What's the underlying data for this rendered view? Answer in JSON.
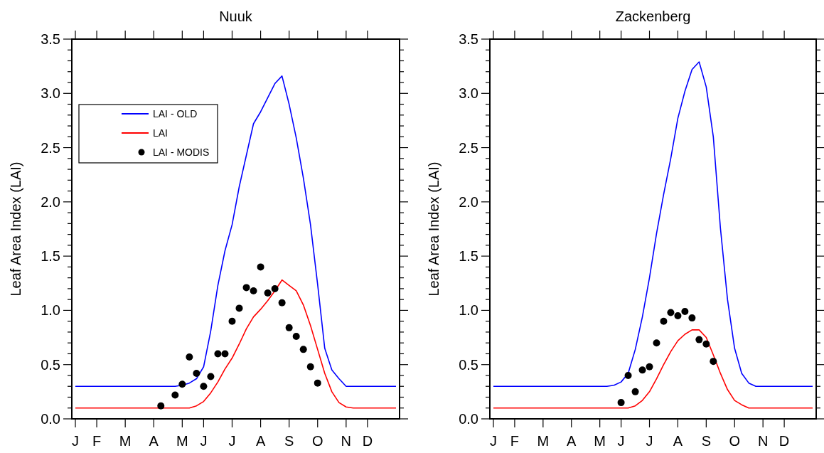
{
  "chart_data": [
    {
      "type": "line",
      "title": "Nuuk",
      "ylabel": "Leaf Area Index (LAI)",
      "categories": [
        "J",
        null,
        null,
        "F",
        null,
        null,
        null,
        "M",
        null,
        null,
        null,
        "A",
        null,
        null,
        null,
        "M",
        null,
        null,
        "J",
        null,
        null,
        null,
        "J",
        null,
        null,
        null,
        "A",
        null,
        null,
        null,
        "S",
        null,
        null,
        null,
        "O",
        null,
        null,
        null,
        "N",
        null,
        null,
        "D",
        null,
        null,
        null,
        null
      ],
      "ylim": [
        0,
        3.5
      ],
      "yticks": [
        {
          "value": 0,
          "label": "0.0"
        },
        {
          "value": 0.1,
          "label": null
        },
        {
          "value": 0.2,
          "label": null
        },
        {
          "value": 0.3,
          "label": null
        },
        {
          "value": 0.4,
          "label": null
        },
        0.5,
        {
          "value": 0.6,
          "label": null
        },
        {
          "value": 0.7,
          "label": null
        },
        {
          "value": 0.8,
          "label": null
        },
        {
          "value": 0.9,
          "label": null
        },
        {
          "value": 1,
          "label": "1.0"
        },
        {
          "value": 1.1,
          "label": null
        },
        {
          "value": 1.2,
          "label": null
        },
        {
          "value": 1.3,
          "label": null
        },
        {
          "value": 1.4,
          "label": null
        },
        1.5,
        {
          "value": 1.6,
          "label": null
        },
        {
          "value": 1.7,
          "label": null
        },
        {
          "value": 1.8,
          "label": null
        },
        {
          "value": 1.9,
          "label": null
        },
        {
          "value": 2,
          "label": "2.0"
        },
        {
          "value": 2.1,
          "label": null
        },
        {
          "value": 2.2,
          "label": null
        },
        {
          "value": 2.3,
          "label": null
        },
        {
          "value": 2.4,
          "label": null
        },
        2.5,
        {
          "value": 2.6,
          "label": null
        },
        {
          "value": 2.7,
          "label": null
        },
        {
          "value": 2.8,
          "label": null
        },
        {
          "value": 2.9,
          "label": null
        },
        {
          "value": 3,
          "label": "3.0"
        },
        {
          "value": 3.1,
          "label": null
        },
        {
          "value": 3.2,
          "label": null
        },
        {
          "value": 3.3,
          "label": null
        },
        {
          "value": 3.4,
          "label": null
        },
        3.5
      ],
      "legend": "top left",
      "grid": false,
      "series": [
        {
          "name": "LAI - OLD",
          "color": "#0000ff",
          "values": [
            0.3,
            0.3,
            0.3,
            0.3,
            0.3,
            0.3,
            0.3,
            0.3,
            0.3,
            0.3,
            0.3,
            0.3,
            0.3,
            0.3,
            0.3,
            0.31,
            0.33,
            0.37,
            0.48,
            0.81,
            1.23,
            1.55,
            1.79,
            2.14,
            2.43,
            2.72,
            2.83,
            2.96,
            3.09,
            3.16,
            2.9,
            2.59,
            2.22,
            1.79,
            1.24,
            0.65,
            0.45,
            0.37,
            0.3,
            0.3,
            0.3,
            0.3,
            0.3,
            0.3,
            0.3,
            0.3
          ]
        },
        {
          "name": "LAI",
          "color": "#ff0000",
          "values": [
            0.1,
            0.1,
            0.1,
            0.1,
            0.1,
            0.1,
            0.1,
            0.1,
            0.1,
            0.1,
            0.1,
            0.1,
            0.1,
            0.1,
            0.1,
            0.1,
            0.1,
            0.12,
            0.16,
            0.24,
            0.34,
            0.46,
            0.56,
            0.69,
            0.83,
            0.94,
            1.01,
            1.09,
            1.18,
            1.28,
            1.23,
            1.18,
            1.05,
            0.86,
            0.64,
            0.42,
            0.25,
            0.15,
            0.11,
            0.1,
            0.1,
            0.1,
            0.1,
            0.1,
            0.1,
            0.1
          ]
        },
        {
          "name": "LAI - MODIS",
          "type": "scatter",
          "marker": "circle",
          "color": "#000000",
          "values": [
            null,
            null,
            null,
            null,
            null,
            null,
            null,
            null,
            null,
            null,
            null,
            null,
            0.12,
            null,
            0.22,
            0.32,
            0.57,
            0.42,
            0.3,
            0.39,
            0.6,
            0.6,
            0.9,
            1.02,
            1.21,
            1.18,
            1.4,
            1.16,
            1.2,
            1.07,
            0.84,
            0.76,
            0.64,
            0.48,
            0.33,
            null,
            null,
            null,
            null,
            null,
            null,
            null,
            null,
            null,
            null,
            null
          ]
        }
      ]
    },
    {
      "type": "line",
      "title": "Zackenberg",
      "ylabel": "Leaf Area Index (LAI)",
      "categories": [
        "J",
        null,
        null,
        "F",
        null,
        null,
        null,
        "M",
        null,
        null,
        null,
        "A",
        null,
        null,
        null,
        "M",
        null,
        null,
        "J",
        null,
        null,
        null,
        "J",
        null,
        null,
        null,
        "A",
        null,
        null,
        null,
        "S",
        null,
        null,
        null,
        "O",
        null,
        null,
        null,
        "N",
        null,
        null,
        "D",
        null,
        null,
        null,
        null
      ],
      "ylim": [
        0,
        3.5
      ],
      "yticks": [
        {
          "value": 0,
          "label": "0.0"
        },
        {
          "value": 0.1,
          "label": null
        },
        {
          "value": 0.2,
          "label": null
        },
        {
          "value": 0.3,
          "label": null
        },
        {
          "value": 0.4,
          "label": null
        },
        0.5,
        {
          "value": 0.6,
          "label": null
        },
        {
          "value": 0.7,
          "label": null
        },
        {
          "value": 0.8,
          "label": null
        },
        {
          "value": 0.9,
          "label": null
        },
        {
          "value": 1,
          "label": "1.0"
        },
        {
          "value": 1.1,
          "label": null
        },
        {
          "value": 1.2,
          "label": null
        },
        {
          "value": 1.3,
          "label": null
        },
        {
          "value": 1.4,
          "label": null
        },
        1.5,
        {
          "value": 1.6,
          "label": null
        },
        {
          "value": 1.7,
          "label": null
        },
        {
          "value": 1.8,
          "label": null
        },
        {
          "value": 1.9,
          "label": null
        },
        {
          "value": 2,
          "label": "2.0"
        },
        {
          "value": 2.1,
          "label": null
        },
        {
          "value": 2.2,
          "label": null
        },
        {
          "value": 2.3,
          "label": null
        },
        {
          "value": 2.4,
          "label": null
        },
        2.5,
        {
          "value": 2.6,
          "label": null
        },
        {
          "value": 2.7,
          "label": null
        },
        {
          "value": 2.8,
          "label": null
        },
        {
          "value": 2.9,
          "label": null
        },
        {
          "value": 3,
          "label": "3.0"
        },
        {
          "value": 3.1,
          "label": null
        },
        {
          "value": 3.2,
          "label": null
        },
        {
          "value": 3.3,
          "label": null
        },
        {
          "value": 3.4,
          "label": null
        },
        3.5
      ],
      "legend": false,
      "grid": false,
      "series": [
        {
          "color": "#0000ff",
          "values": [
            0.3,
            0.3,
            0.3,
            0.3,
            0.3,
            0.3,
            0.3,
            0.3,
            0.3,
            0.3,
            0.3,
            0.3,
            0.3,
            0.3,
            0.3,
            0.3,
            0.3,
            0.31,
            0.34,
            0.42,
            0.64,
            0.94,
            1.3,
            1.71,
            2.07,
            2.4,
            2.77,
            3.02,
            3.22,
            3.29,
            3.06,
            2.6,
            1.76,
            1.1,
            0.65,
            0.42,
            0.33,
            0.3,
            0.3,
            0.3,
            0.3,
            0.3,
            0.3,
            0.3,
            0.3,
            0.3
          ]
        },
        {
          "color": "#ff0000",
          "values": [
            0.1,
            0.1,
            0.1,
            0.1,
            0.1,
            0.1,
            0.1,
            0.1,
            0.1,
            0.1,
            0.1,
            0.1,
            0.1,
            0.1,
            0.1,
            0.1,
            0.1,
            0.1,
            0.1,
            0.1,
            0.12,
            0.17,
            0.25,
            0.37,
            0.5,
            0.62,
            0.72,
            0.78,
            0.82,
            0.82,
            0.75,
            0.59,
            0.42,
            0.27,
            0.17,
            0.13,
            0.1,
            0.1,
            0.1,
            0.1,
            0.1,
            0.1,
            0.1,
            0.1,
            0.1,
            0.1
          ]
        },
        {
          "type": "scatter",
          "marker": "circle",
          "color": "#000000",
          "values": [
            null,
            null,
            null,
            null,
            null,
            null,
            null,
            null,
            null,
            null,
            null,
            null,
            null,
            null,
            null,
            null,
            null,
            null,
            0.15,
            0.4,
            0.25,
            0.45,
            0.48,
            0.7,
            0.9,
            0.98,
            0.95,
            0.99,
            0.93,
            0.73,
            0.69,
            0.53,
            null,
            null,
            null,
            null,
            null,
            null,
            null,
            null,
            null,
            null,
            null,
            null,
            null,
            null
          ]
        }
      ]
    }
  ]
}
